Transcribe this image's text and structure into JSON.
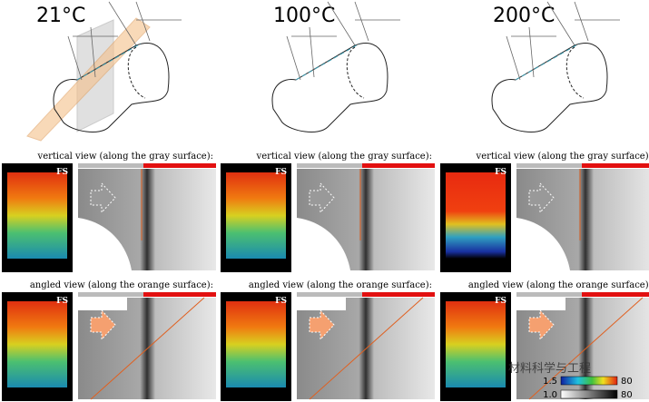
{
  "columns": [
    {
      "temperature": "21°C",
      "vertical_label": "vertical view (along the gray surface):",
      "angled_label": "angled view (along the orange surface):",
      "vertical_fs": "FS",
      "angled_fs": "FS"
    },
    {
      "temperature": "100°C",
      "vertical_label": "vertical view (along the gray surface):",
      "angled_label": "angled view (along the orange surface):",
      "vertical_fs": "FS",
      "angled_fs": "FS"
    },
    {
      "temperature": "200°C",
      "vertical_label": "vertical view (along the gray surface):",
      "angled_label": "angled view (along the orange surface):",
      "vertical_fs": "FS",
      "angled_fs": "FS"
    }
  ],
  "colorbar": {
    "color_min": "1.5",
    "color_max": "80",
    "gray_min": "1.0",
    "gray_max": "80"
  },
  "watermark": "材料科学与工程"
}
